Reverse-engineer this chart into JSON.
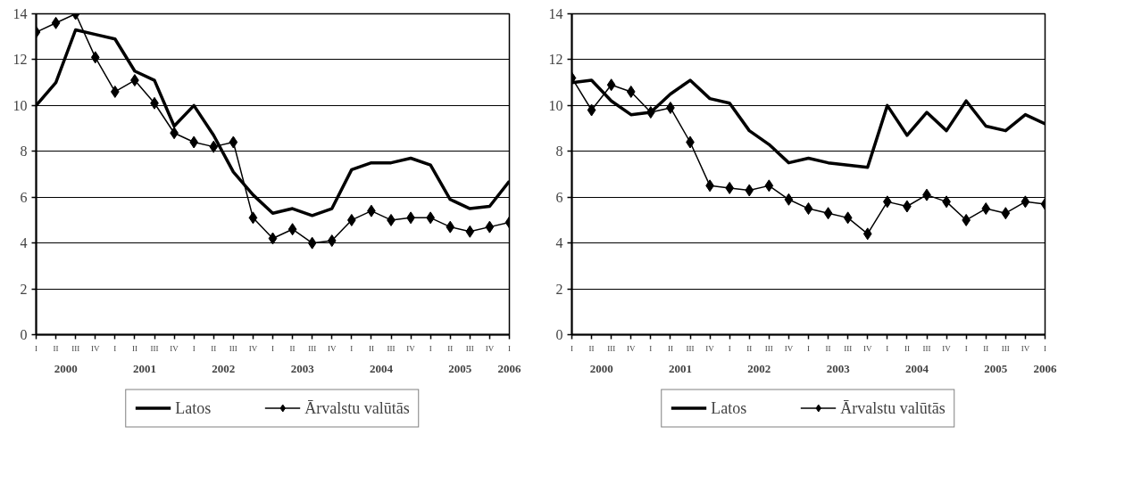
{
  "chart_data": [
    {
      "type": "line",
      "categories": [
        "I",
        "II",
        "III",
        "IV",
        "I",
        "II",
        "III",
        "IV",
        "I",
        "II",
        "III",
        "IV",
        "I",
        "II",
        "III",
        "IV",
        "I",
        "II",
        "III",
        "IV",
        "I",
        "II",
        "III",
        "IV",
        "I"
      ],
      "annotations": [
        "2000",
        "2001",
        "2002",
        "2003",
        "2004",
        "2005",
        "2006"
      ],
      "series": [
        {
          "name": "Latos",
          "color": "#000000",
          "marker": "none",
          "values": [
            10.0,
            11.0,
            13.3,
            13.1,
            12.9,
            11.5,
            11.1,
            9.1,
            10.0,
            8.7,
            7.1,
            6.1,
            5.3,
            5.5,
            5.2,
            5.5,
            7.2,
            7.5,
            7.5,
            7.7,
            7.4,
            5.9,
            5.5,
            5.6,
            6.7
          ]
        },
        {
          "name": "Ārvalstu valūtās",
          "color": "#000000",
          "marker": "diamond",
          "values": [
            13.2,
            13.6,
            14.0,
            12.1,
            10.6,
            11.1,
            10.1,
            8.8,
            8.4,
            8.2,
            8.4,
            5.1,
            4.2,
            4.6,
            4.0,
            4.1,
            5.0,
            5.4,
            5.0,
            5.1,
            5.1,
            4.7,
            4.5,
            4.7,
            4.9
          ]
        }
      ],
      "ylim": [
        0,
        14
      ],
      "yticks": [
        0,
        2,
        4,
        6,
        8,
        10,
        12,
        14
      ],
      "grid": "y",
      "legend": "bottom"
    },
    {
      "type": "line",
      "categories": [
        "I",
        "II",
        "III",
        "IV",
        "I",
        "II",
        "III",
        "IV",
        "I",
        "II",
        "III",
        "IV",
        "I",
        "II",
        "III",
        "IV",
        "I",
        "II",
        "III",
        "IV",
        "I",
        "II",
        "III",
        "IV",
        "I"
      ],
      "annotations": [
        "2000",
        "2001",
        "2002",
        "2003",
        "2004",
        "2005",
        "2006"
      ],
      "series": [
        {
          "name": "Latos",
          "color": "#000000",
          "marker": "none",
          "values": [
            11.0,
            11.1,
            10.2,
            9.6,
            9.7,
            10.5,
            11.1,
            10.3,
            10.1,
            8.9,
            8.3,
            7.5,
            7.7,
            7.5,
            7.4,
            7.3,
            10.0,
            8.7,
            9.7,
            8.9,
            10.2,
            9.1,
            8.9,
            9.6,
            9.2
          ]
        },
        {
          "name": "Ārvalstu valūtās",
          "color": "#000000",
          "marker": "diamond",
          "values": [
            11.2,
            9.8,
            10.9,
            10.6,
            9.7,
            9.9,
            8.4,
            6.5,
            6.4,
            6.3,
            6.5,
            5.9,
            5.5,
            5.3,
            5.1,
            4.4,
            5.8,
            5.6,
            6.1,
            5.8,
            5.0,
            5.5,
            5.3,
            5.8,
            5.7
          ]
        }
      ],
      "ylim": [
        0,
        14
      ],
      "yticks": [
        0,
        2,
        4,
        6,
        8,
        10,
        12,
        14
      ],
      "grid": "y",
      "legend": "bottom"
    }
  ]
}
